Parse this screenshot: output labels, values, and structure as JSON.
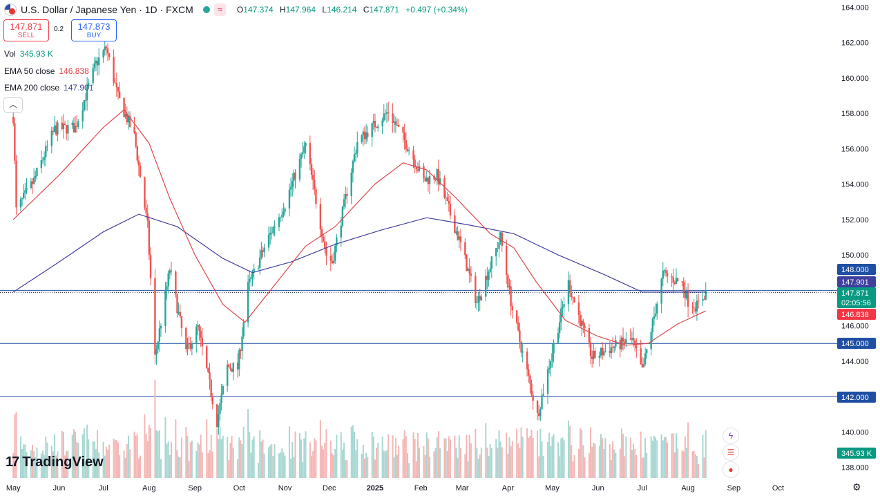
{
  "header": {
    "title": "U.S. Dollar / Japanese Yen · 1D · FXCM",
    "wave_icon": "≈",
    "ohlc": [
      {
        "k": "O",
        "v": "147.374"
      },
      {
        "k": "H",
        "v": "147.964"
      },
      {
        "k": "L",
        "v": "146.214"
      },
      {
        "k": "C",
        "v": "147.871"
      },
      {
        "k": "",
        "v": "+0.497 (+0.34%)"
      }
    ]
  },
  "trade": {
    "sell_price": "147.871",
    "sell_label": "SELL",
    "spread": "0.2",
    "buy_price": "147.873",
    "buy_label": "BUY"
  },
  "indicators": {
    "vol_label": "Vol",
    "vol_value": "345.93 K",
    "ema50_label": "EMA 50 close",
    "ema50_value": "146.838",
    "ema200_label": "EMA 200 close",
    "ema200_value": "147.901"
  },
  "collapse_icon": "chevron-up-icon",
  "logo": {
    "mark": "17",
    "text": "TradingView"
  },
  "colors": {
    "up": "#26a69a",
    "down": "#ef5350",
    "ema50": "#e0464a",
    "ema200": "#3f3f9e",
    "hline": "#1f4fa3",
    "vol_up": "#a7d7d2",
    "vol_down": "#f4b6b5",
    "price_badge": "#089981"
  },
  "chart_data": {
    "type": "candlestick",
    "x_axis_labels": [
      "May",
      "Jun",
      "Jul",
      "Aug",
      "Sep",
      "Oct",
      "Nov",
      "Dec",
      "2025",
      "Feb",
      "Mar",
      "Apr",
      "May",
      "Jun",
      "Jul",
      "Aug",
      "Sep",
      "Oct"
    ],
    "y_axis_labels": [
      "164.000",
      "162.000",
      "160.000",
      "158.000",
      "156.000",
      "154.000",
      "152.000",
      "150.000",
      "148.000",
      "146.000",
      "144.000",
      "142.000",
      "140.000",
      "138.000"
    ],
    "ylim": [
      137.4,
      164.4
    ],
    "price_path": [
      {
        "x": "2024-05-01",
        "y": 157.8
      },
      {
        "x": "2024-05-03",
        "y": 152.5
      },
      {
        "x": "2024-05-15",
        "y": 154.2
      },
      {
        "x": "2024-05-29",
        "y": 157.1
      },
      {
        "x": "2024-06-12",
        "y": 157.2
      },
      {
        "x": "2024-06-26",
        "y": 160.8
      },
      {
        "x": "2024-07-03",
        "y": 161.7
      },
      {
        "x": "2024-07-11",
        "y": 158.9
      },
      {
        "x": "2024-07-22",
        "y": 156.7
      },
      {
        "x": "2024-07-31",
        "y": 151.6
      },
      {
        "x": "2024-08-05",
        "y": 144.2
      },
      {
        "x": "2024-08-15",
        "y": 149.2
      },
      {
        "x": "2024-08-26",
        "y": 144.5
      },
      {
        "x": "2024-09-03",
        "y": 145.9
      },
      {
        "x": "2024-09-16",
        "y": 140.6
      },
      {
        "x": "2024-09-23",
        "y": 143.7
      },
      {
        "x": "2024-09-30",
        "y": 143.6
      },
      {
        "x": "2024-10-07",
        "y": 148.2
      },
      {
        "x": "2024-10-21",
        "y": 151.0
      },
      {
        "x": "2024-11-01",
        "y": 152.9
      },
      {
        "x": "2024-11-15",
        "y": 156.2
      },
      {
        "x": "2024-11-29",
        "y": 150.0
      },
      {
        "x": "2024-12-03",
        "y": 149.6
      },
      {
        "x": "2024-12-20",
        "y": 156.4
      },
      {
        "x": "2025-01-10",
        "y": 158.1
      },
      {
        "x": "2025-01-24",
        "y": 156.0
      },
      {
        "x": "2025-02-03",
        "y": 154.2
      },
      {
        "x": "2025-02-12",
        "y": 154.5
      },
      {
        "x": "2025-02-28",
        "y": 150.6
      },
      {
        "x": "2025-03-11",
        "y": 147.3
      },
      {
        "x": "2025-03-27",
        "y": 151.0
      },
      {
        "x": "2025-04-04",
        "y": 146.9
      },
      {
        "x": "2025-04-21",
        "y": 140.9
      },
      {
        "x": "2025-05-02",
        "y": 144.9
      },
      {
        "x": "2025-05-12",
        "y": 148.4
      },
      {
        "x": "2025-05-28",
        "y": 144.2
      },
      {
        "x": "2025-06-11",
        "y": 144.8
      },
      {
        "x": "2025-06-24",
        "y": 145.2
      },
      {
        "x": "2025-07-01",
        "y": 143.4
      },
      {
        "x": "2025-07-15",
        "y": 148.9
      },
      {
        "x": "2025-07-28",
        "y": 148.4
      },
      {
        "x": "2025-08-01",
        "y": 147.4
      },
      {
        "x": "2025-08-07",
        "y": 147.1
      },
      {
        "x": "2025-08-13",
        "y": 147.87
      }
    ],
    "ema50_path": [
      {
        "x": "2024-05-01",
        "y": 152.0
      },
      {
        "x": "2024-06-01",
        "y": 154.5
      },
      {
        "x": "2024-07-01",
        "y": 157.2
      },
      {
        "x": "2024-07-15",
        "y": 158.2
      },
      {
        "x": "2024-08-01",
        "y": 156.3
      },
      {
        "x": "2024-08-15",
        "y": 153.2
      },
      {
        "x": "2024-09-01",
        "y": 150.0
      },
      {
        "x": "2024-09-20",
        "y": 147.2
      },
      {
        "x": "2024-10-05",
        "y": 146.2
      },
      {
        "x": "2024-10-25",
        "y": 148.3
      },
      {
        "x": "2024-11-15",
        "y": 150.5
      },
      {
        "x": "2024-12-05",
        "y": 151.6
      },
      {
        "x": "2025-01-01",
        "y": 154.0
      },
      {
        "x": "2025-01-20",
        "y": 155.2
      },
      {
        "x": "2025-02-05",
        "y": 154.8
      },
      {
        "x": "2025-02-25",
        "y": 153.2
      },
      {
        "x": "2025-03-20",
        "y": 151.2
      },
      {
        "x": "2025-04-05",
        "y": 150.4
      },
      {
        "x": "2025-04-20",
        "y": 148.5
      },
      {
        "x": "2025-05-10",
        "y": 146.3
      },
      {
        "x": "2025-06-01",
        "y": 145.4
      },
      {
        "x": "2025-06-20",
        "y": 144.9
      },
      {
        "x": "2025-07-05",
        "y": 145.0
      },
      {
        "x": "2025-07-25",
        "y": 146.1
      },
      {
        "x": "2025-08-13",
        "y": 146.838
      }
    ],
    "ema200_path": [
      {
        "x": "2024-05-01",
        "y": 147.9
      },
      {
        "x": "2024-06-01",
        "y": 149.6
      },
      {
        "x": "2024-07-01",
        "y": 151.3
      },
      {
        "x": "2024-07-25",
        "y": 152.3
      },
      {
        "x": "2024-08-20",
        "y": 151.6
      },
      {
        "x": "2024-09-20",
        "y": 149.8
      },
      {
        "x": "2024-10-10",
        "y": 149.0
      },
      {
        "x": "2024-11-05",
        "y": 149.6
      },
      {
        "x": "2024-12-05",
        "y": 150.6
      },
      {
        "x": "2025-01-05",
        "y": 151.4
      },
      {
        "x": "2025-02-05",
        "y": 152.1
      },
      {
        "x": "2025-03-05",
        "y": 151.7
      },
      {
        "x": "2025-04-05",
        "y": 151.2
      },
      {
        "x": "2025-05-05",
        "y": 150.0
      },
      {
        "x": "2025-06-05",
        "y": 148.9
      },
      {
        "x": "2025-07-01",
        "y": 147.9
      },
      {
        "x": "2025-08-13",
        "y": 147.901
      }
    ],
    "horizontal_lines": [
      {
        "label": "145.000",
        "y": 145.0
      },
      {
        "label": "142.000",
        "y": 142.0
      }
    ],
    "price_labels": [
      {
        "label": "148.000",
        "y": 148.0,
        "kind": "line"
      },
      {
        "label": "147.901",
        "y": 147.901,
        "kind": "ema200"
      },
      {
        "label": "147.871",
        "sub": "02:05:56",
        "y": 147.871,
        "kind": "last"
      },
      {
        "label": "146.838",
        "y": 146.838,
        "kind": "ema50"
      },
      {
        "label": "145.000",
        "y": 145.0,
        "kind": "line"
      },
      {
        "label": "142.000",
        "y": 142.0,
        "kind": "line"
      }
    ],
    "volume_label": "345.93 K"
  }
}
